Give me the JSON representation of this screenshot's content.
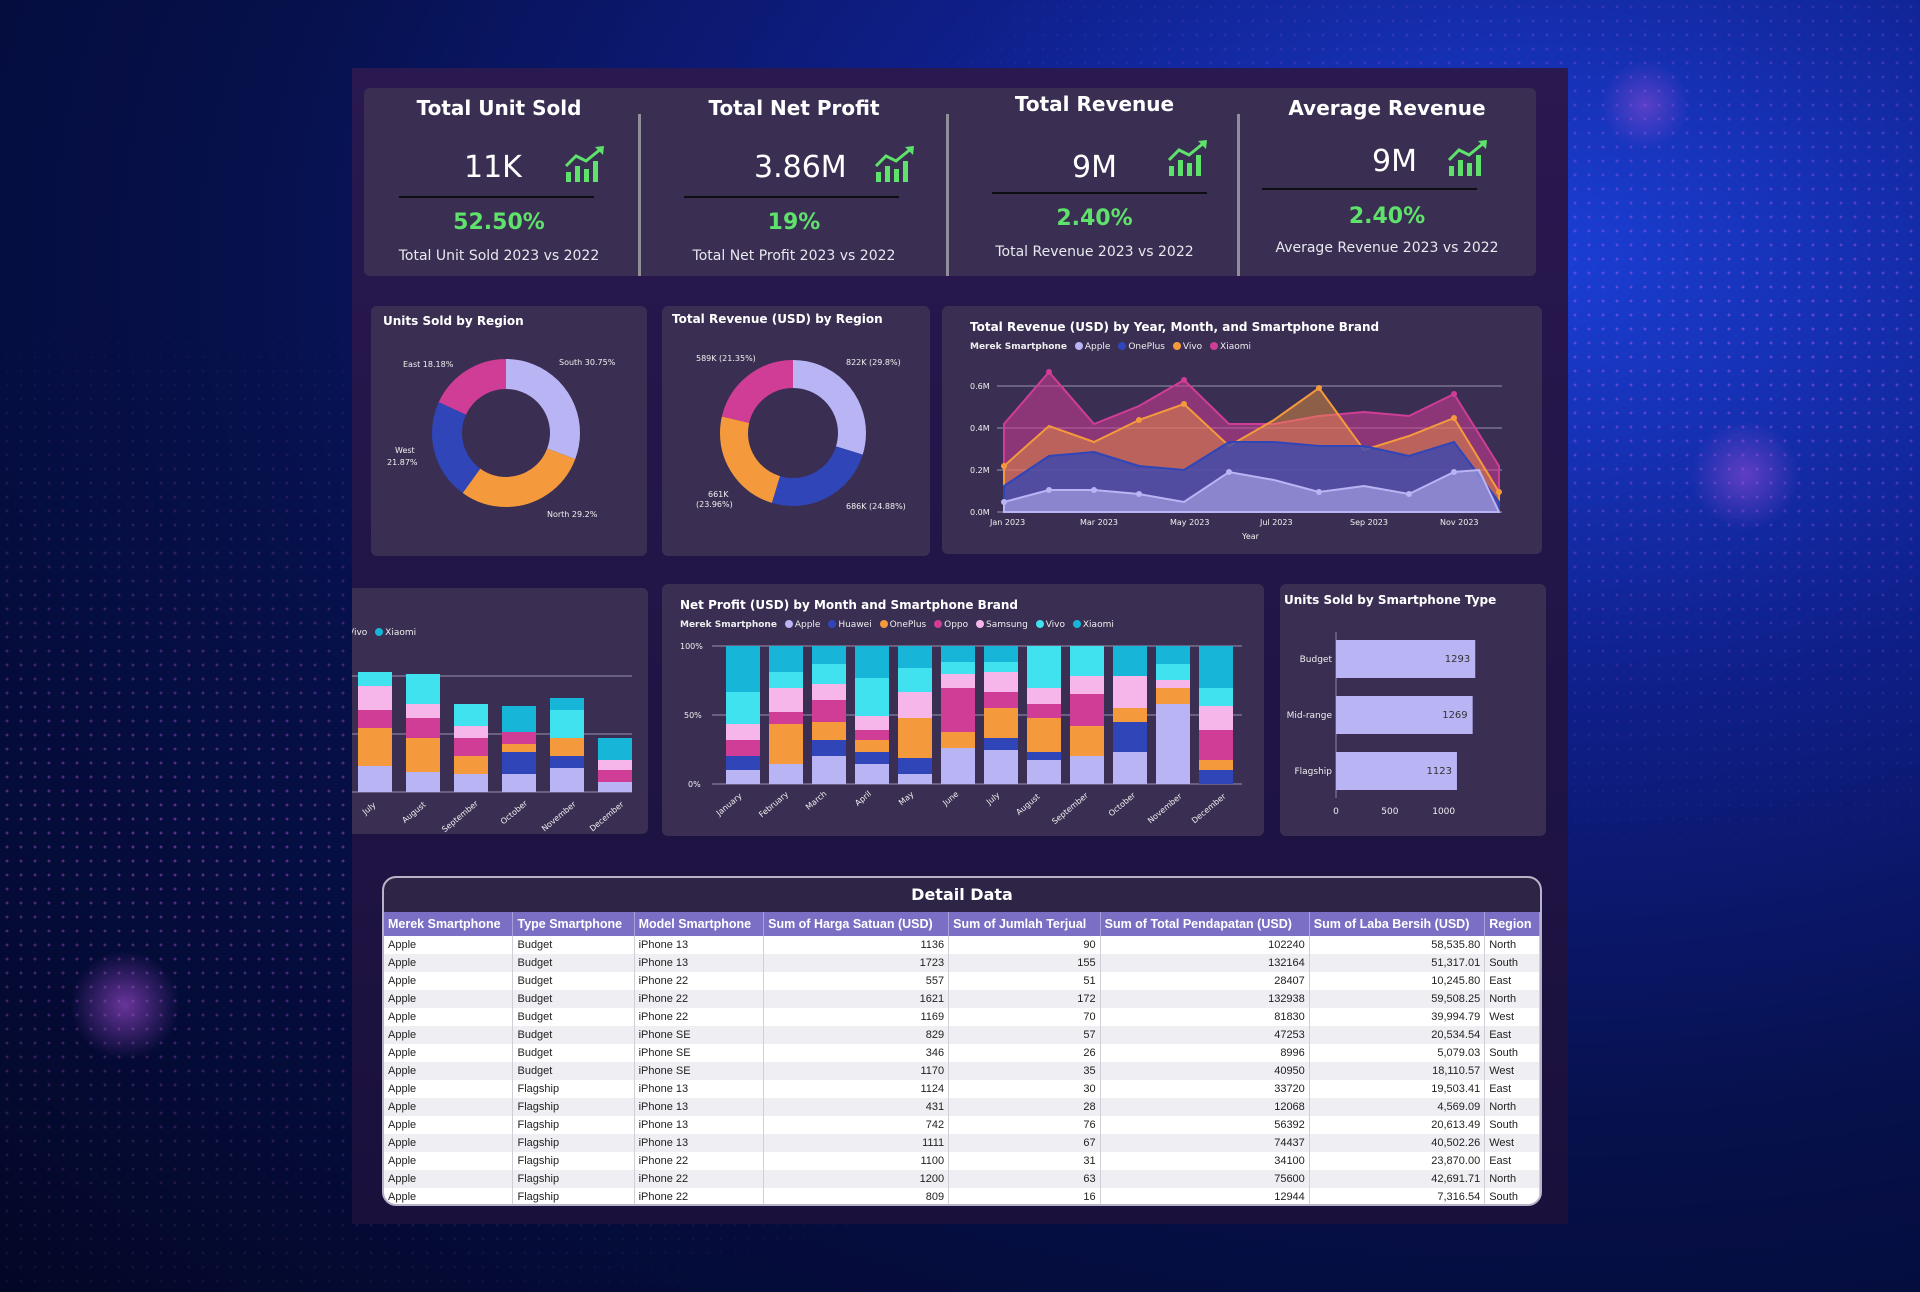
{
  "kpis": [
    {
      "title": "Total Unit Sold",
      "value": "11K",
      "pct": "52.50%",
      "sub": "Total Unit Sold 2023 vs 2022"
    },
    {
      "title": "Total Net Profit",
      "value": "3.86M",
      "pct": "19%",
      "sub": "Total Net Profit 2023 vs 2022"
    },
    {
      "title": "Total Revenue",
      "value": "9M",
      "pct": "2.40%",
      "sub": "Total Revenue 2023 vs 2022"
    },
    {
      "title": "Average Revenue",
      "value": "9M",
      "pct": "2.40%",
      "sub": "Average Revenue 2023 vs 2022"
    }
  ],
  "units_region": {
    "title": "Units Sold by Region",
    "labels": {
      "east": "East 18.18%",
      "south": "South 30.75%",
      "west1": "West",
      "west2": "21.87%",
      "north": "North 29.2%"
    }
  },
  "revenue_region": {
    "title": "Total Revenue (USD) by Region",
    "labels": {
      "tl": "589K (21.35%)",
      "tr": "822K (29.8%)",
      "bl1": "661K",
      "bl2": "(23.96%)",
      "br": "686K (24.88%)"
    }
  },
  "trend": {
    "title": "Total Revenue (USD) by Year, Month, and Smartphone Brand",
    "legend_label": "Merek Smartphone",
    "xlabel": "Year",
    "legend": [
      {
        "name": "Apple",
        "color": "#b9b4f4"
      },
      {
        "name": "OnePlus",
        "color": "#2f45b8"
      },
      {
        "name": "Vivo",
        "color": "#f59a3c"
      },
      {
        "name": "Xiaomi",
        "color": "#cf3d96"
      }
    ],
    "y_ticks": [
      "0.6M",
      "0.4M",
      "0.2M",
      "0.0M"
    ],
    "x_ticks": [
      "Jan 2023",
      "Mar 2023",
      "May 2023",
      "Jul 2023",
      "Sep 2023",
      "Nov 2023"
    ]
  },
  "left_partial": {
    "legend": [
      {
        "name": "Vivo",
        "color": "#f59a3c"
      },
      {
        "name": "Xiaomi",
        "color": "#17b5d8"
      }
    ],
    "x_ticks": [
      "July",
      "August",
      "September",
      "October",
      "November",
      "December"
    ]
  },
  "net_profit": {
    "title": "Net Profit (USD) by Month and Smartphone Brand",
    "legend_label": "Merek Smartphone",
    "legend": [
      {
        "name": "Apple",
        "color": "#b9b4f4"
      },
      {
        "name": "Huawei",
        "color": "#2f45b8"
      },
      {
        "name": "OnePlus",
        "color": "#f59a3c"
      },
      {
        "name": "Oppo",
        "color": "#cf3d96"
      },
      {
        "name": "Samsung",
        "color": "#f7b6ea"
      },
      {
        "name": "Vivo",
        "color": "#40e2f0"
      },
      {
        "name": "Xiaomi",
        "color": "#17b5d8"
      }
    ],
    "y_ticks": [
      "100%",
      "50%",
      "0%"
    ],
    "x_ticks": [
      "January",
      "February",
      "March",
      "April",
      "May",
      "June",
      "July",
      "August",
      "September",
      "October",
      "November",
      "December"
    ]
  },
  "chart_data": {
    "type": "bar",
    "title": "Units Sold by Smartphone Type",
    "categories": [
      "Budget",
      "Mid-range",
      "Flagship"
    ],
    "values": [
      1293,
      1269,
      1123
    ],
    "x_ticks": [
      "0",
      "500",
      "1000"
    ],
    "xlim": [
      0,
      1300
    ]
  },
  "table": {
    "title": "Detail Data",
    "headers": [
      "Merek Smartphone",
      "Type Smartphone",
      "Model Smartphone",
      "Sum of Harga Satuan (USD)",
      "Sum of Jumlah Terjual",
      "Sum of Total Pendapatan (USD)",
      "Sum of Laba Bersih (USD)",
      "Region"
    ],
    "rows": [
      [
        "Apple",
        "Budget",
        "iPhone 13",
        "1136",
        "90",
        "102240",
        "58,535.80",
        "North"
      ],
      [
        "Apple",
        "Budget",
        "iPhone 13",
        "1723",
        "155",
        "132164",
        "51,317.01",
        "South"
      ],
      [
        "Apple",
        "Budget",
        "iPhone 22",
        "557",
        "51",
        "28407",
        "10,245.80",
        "East"
      ],
      [
        "Apple",
        "Budget",
        "iPhone 22",
        "1621",
        "172",
        "132938",
        "59,508.25",
        "North"
      ],
      [
        "Apple",
        "Budget",
        "iPhone 22",
        "1169",
        "70",
        "81830",
        "39,994.79",
        "West"
      ],
      [
        "Apple",
        "Budget",
        "iPhone SE",
        "829",
        "57",
        "47253",
        "20,534.54",
        "East"
      ],
      [
        "Apple",
        "Budget",
        "iPhone SE",
        "346",
        "26",
        "8996",
        "5,079.03",
        "South"
      ],
      [
        "Apple",
        "Budget",
        "iPhone SE",
        "1170",
        "35",
        "40950",
        "18,110.57",
        "West"
      ],
      [
        "Apple",
        "Flagship",
        "iPhone 13",
        "1124",
        "30",
        "33720",
        "19,503.41",
        "East"
      ],
      [
        "Apple",
        "Flagship",
        "iPhone 13",
        "431",
        "28",
        "12068",
        "4,569.09",
        "North"
      ],
      [
        "Apple",
        "Flagship",
        "iPhone 13",
        "742",
        "76",
        "56392",
        "20,613.49",
        "South"
      ],
      [
        "Apple",
        "Flagship",
        "iPhone 13",
        "1111",
        "67",
        "74437",
        "40,502.26",
        "West"
      ],
      [
        "Apple",
        "Flagship",
        "iPhone 22",
        "1100",
        "31",
        "34100",
        "23,870.00",
        "East"
      ],
      [
        "Apple",
        "Flagship",
        "iPhone 22",
        "1200",
        "63",
        "75600",
        "42,691.71",
        "North"
      ],
      [
        "Apple",
        "Flagship",
        "iPhone 22",
        "809",
        "16",
        "12944",
        "7,316.54",
        "South"
      ]
    ]
  }
}
